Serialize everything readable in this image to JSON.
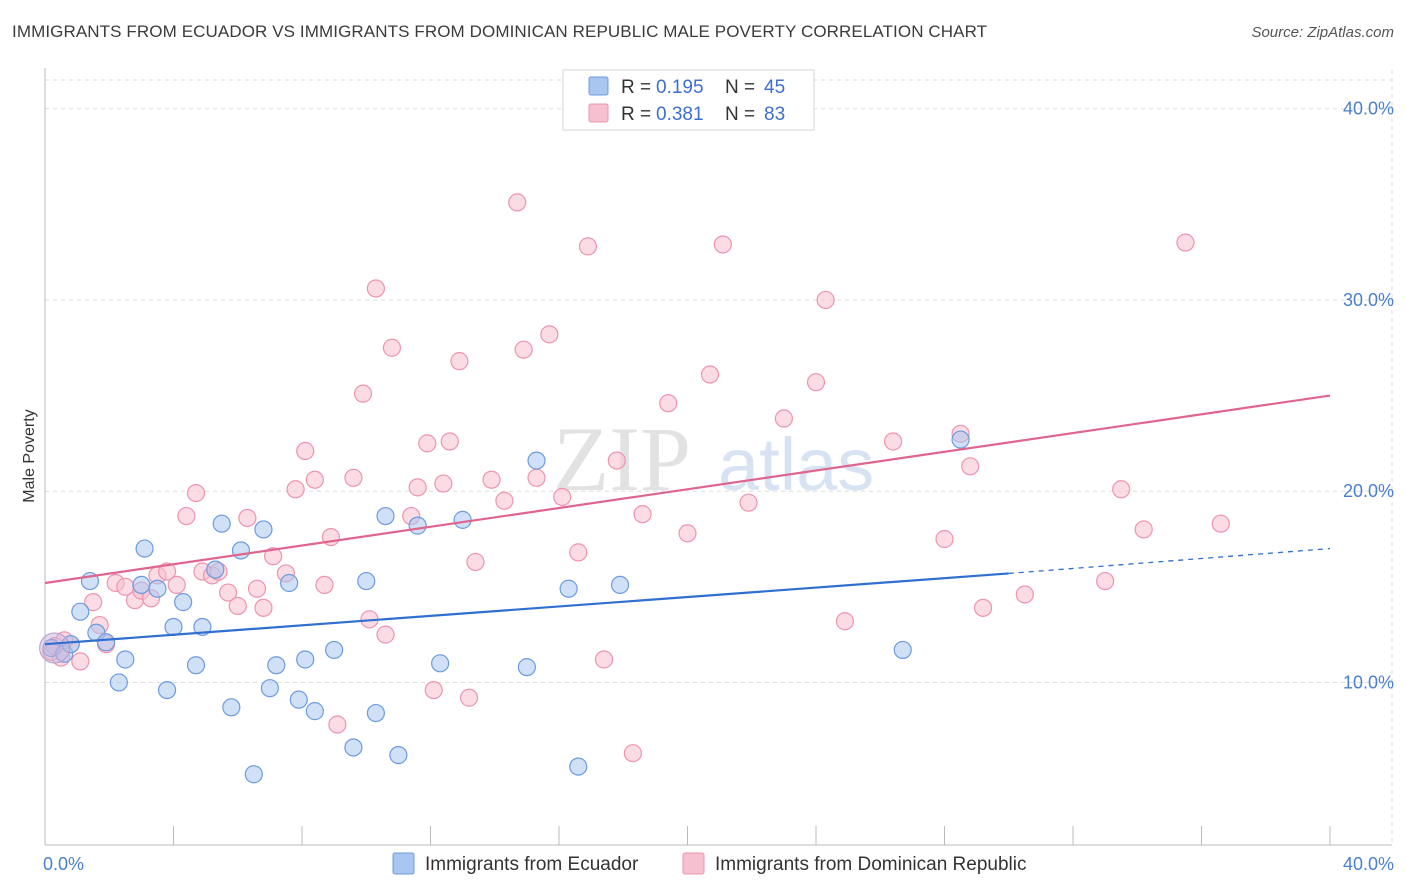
{
  "title": "IMMIGRANTS FROM ECUADOR VS IMMIGRANTS FROM DOMINICAN REPUBLIC MALE POVERTY CORRELATION CHART",
  "source": "Source: ZipAtlas.com",
  "watermark": {
    "zip": "ZIP",
    "atlas": "atlas"
  },
  "colors": {
    "ecuador_fill": "#a9c6f0",
    "ecuador_stroke": "#6d9be0",
    "ecuador_line": "#2f6fcf",
    "dr_fill": "#f7c0d0",
    "dr_stroke": "#ee94ae",
    "dr_line": "#e0658e",
    "axis_label": "#4a7fd0",
    "grid": "#dddddd"
  },
  "legend": {
    "r_label": "R =",
    "n_label": "N =",
    "rows": [
      {
        "r": "0.195",
        "n": "45"
      },
      {
        "r": "0.381",
        "n": "83"
      }
    ]
  },
  "chart_data": {
    "type": "scatter",
    "title": "IMMIGRANTS FROM ECUADOR VS IMMIGRANTS FROM DOMINICAN REPUBLIC MALE POVERTY CORRELATION CHART",
    "xlabel": "",
    "ylabel": "Male Poverty",
    "xlim": [
      0,
      40
    ],
    "ylim": [
      1.5,
      41.5
    ],
    "x_tick_labels": [
      "0.0%",
      "40.0%"
    ],
    "y_ticks": [
      10,
      20,
      30,
      40
    ],
    "y_tick_labels": [
      "10.0%",
      "20.0%",
      "30.0%",
      "40.0%"
    ],
    "grid": true,
    "series": [
      {
        "name": "Immigrants from Ecuador",
        "r": 0.195,
        "n": 45,
        "trend": {
          "x0": 0,
          "y0": 12.0,
          "x1": 30.0,
          "y1": 15.7,
          "dash_x1": 40,
          "dash_y1": 17.0
        },
        "points": [
          [
            0.2,
            11.8
          ],
          [
            0.6,
            11.5
          ],
          [
            0.8,
            12.0
          ],
          [
            1.1,
            13.7
          ],
          [
            1.4,
            15.3
          ],
          [
            1.6,
            12.6
          ],
          [
            1.9,
            12.1
          ],
          [
            2.3,
            10.0
          ],
          [
            2.5,
            11.2
          ],
          [
            3.0,
            15.1
          ],
          [
            3.1,
            17.0
          ],
          [
            3.5,
            14.9
          ],
          [
            3.8,
            9.6
          ],
          [
            4.0,
            12.9
          ],
          [
            4.3,
            14.2
          ],
          [
            4.7,
            10.9
          ],
          [
            4.9,
            12.9
          ],
          [
            5.3,
            15.9
          ],
          [
            5.5,
            18.3
          ],
          [
            5.8,
            8.7
          ],
          [
            6.1,
            16.9
          ],
          [
            6.5,
            5.2
          ],
          [
            6.8,
            18.0
          ],
          [
            7.0,
            9.7
          ],
          [
            7.2,
            10.9
          ],
          [
            7.6,
            15.2
          ],
          [
            7.9,
            9.1
          ],
          [
            8.1,
            11.2
          ],
          [
            8.4,
            8.5
          ],
          [
            9.0,
            11.7
          ],
          [
            9.6,
            6.6
          ],
          [
            10.0,
            15.3
          ],
          [
            10.3,
            8.4
          ],
          [
            10.6,
            18.7
          ],
          [
            11.0,
            6.2
          ],
          [
            11.6,
            18.2
          ],
          [
            12.3,
            11.0
          ],
          [
            13.0,
            18.5
          ],
          [
            15.0,
            10.8
          ],
          [
            15.3,
            21.6
          ],
          [
            16.3,
            14.9
          ],
          [
            16.6,
            5.6
          ],
          [
            17.9,
            15.1
          ],
          [
            26.7,
            11.7
          ],
          [
            28.5,
            22.7
          ]
        ]
      },
      {
        "name": "Immigrants from Dominican Republic",
        "r": 0.381,
        "n": 83,
        "trend": {
          "x0": 0,
          "y0": 15.2,
          "x1": 40,
          "y1": 25.0
        },
        "points": [
          [
            0.2,
            11.6
          ],
          [
            0.5,
            11.3
          ],
          [
            0.8,
            12.0
          ],
          [
            1.1,
            11.1
          ],
          [
            1.5,
            14.2
          ],
          [
            1.7,
            13.0
          ],
          [
            1.9,
            12.0
          ],
          [
            2.2,
            15.2
          ],
          [
            2.5,
            15.0
          ],
          [
            2.8,
            14.3
          ],
          [
            3.0,
            14.8
          ],
          [
            3.3,
            14.4
          ],
          [
            3.5,
            15.6
          ],
          [
            3.8,
            15.8
          ],
          [
            4.1,
            15.1
          ],
          [
            4.4,
            18.7
          ],
          [
            4.7,
            19.9
          ],
          [
            4.9,
            15.8
          ],
          [
            5.2,
            15.6
          ],
          [
            5.4,
            15.8
          ],
          [
            5.7,
            14.7
          ],
          [
            6.0,
            14.0
          ],
          [
            6.3,
            18.6
          ],
          [
            6.6,
            14.9
          ],
          [
            6.8,
            13.9
          ],
          [
            7.1,
            16.6
          ],
          [
            7.5,
            15.7
          ],
          [
            7.8,
            20.1
          ],
          [
            8.1,
            22.1
          ],
          [
            8.4,
            20.6
          ],
          [
            8.7,
            15.1
          ],
          [
            8.9,
            17.6
          ],
          [
            9.1,
            7.8
          ],
          [
            9.6,
            20.7
          ],
          [
            9.9,
            25.1
          ],
          [
            10.1,
            13.3
          ],
          [
            10.3,
            30.6
          ],
          [
            10.6,
            12.5
          ],
          [
            10.8,
            27.5
          ],
          [
            11.4,
            18.7
          ],
          [
            11.6,
            20.2
          ],
          [
            11.9,
            22.5
          ],
          [
            12.1,
            9.6
          ],
          [
            12.4,
            20.4
          ],
          [
            12.6,
            22.6
          ],
          [
            12.9,
            26.8
          ],
          [
            13.2,
            9.2
          ],
          [
            13.4,
            16.3
          ],
          [
            13.9,
            20.6
          ],
          [
            14.3,
            19.5
          ],
          [
            14.7,
            35.1
          ],
          [
            14.9,
            27.4
          ],
          [
            15.3,
            20.7
          ],
          [
            15.7,
            28.2
          ],
          [
            16.1,
            19.7
          ],
          [
            16.6,
            16.8
          ],
          [
            16.9,
            32.8
          ],
          [
            17.4,
            11.2
          ],
          [
            17.8,
            21.6
          ],
          [
            18.3,
            6.3
          ],
          [
            18.6,
            18.8
          ],
          [
            19.4,
            24.6
          ],
          [
            20.0,
            17.8
          ],
          [
            20.7,
            26.1
          ],
          [
            21.1,
            32.9
          ],
          [
            21.9,
            19.4
          ],
          [
            23.0,
            23.8
          ],
          [
            24.0,
            25.7
          ],
          [
            24.3,
            30.0
          ],
          [
            24.9,
            13.2
          ],
          [
            26.4,
            22.6
          ],
          [
            28.0,
            17.5
          ],
          [
            28.5,
            23.0
          ],
          [
            28.8,
            21.3
          ],
          [
            29.2,
            13.9
          ],
          [
            30.5,
            14.6
          ],
          [
            33.0,
            15.3
          ],
          [
            33.5,
            20.1
          ],
          [
            34.2,
            18.0
          ],
          [
            35.5,
            33.0
          ],
          [
            36.6,
            18.3
          ],
          [
            0.3,
            11.9
          ],
          [
            0.6,
            12.2
          ]
        ]
      }
    ]
  }
}
